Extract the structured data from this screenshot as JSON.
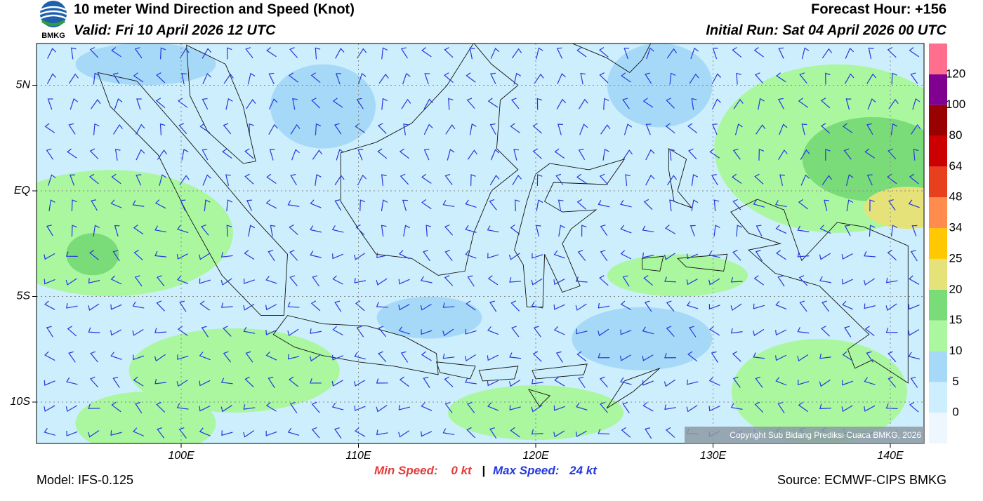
{
  "header": {
    "title": "10 meter Wind Direction and Speed (Knot)",
    "valid": "Valid: Fri 10 April 2026 12 UTC",
    "forecast_hour": "Forecast Hour: +156",
    "initial_run": "Initial Run: Sat 04 April 2026 00 UTC",
    "logo_text": "BMKG"
  },
  "map": {
    "lon_ticks": [
      {
        "value": 100,
        "label": "100E"
      },
      {
        "value": 110,
        "label": "110E"
      },
      {
        "value": 120,
        "label": "120E"
      },
      {
        "value": 130,
        "label": "130E"
      },
      {
        "value": 140,
        "label": "140E"
      }
    ],
    "lat_ticks": [
      {
        "value": 5,
        "label": "5N"
      },
      {
        "value": 0,
        "label": "EQ"
      },
      {
        "value": -5,
        "label": "5S"
      },
      {
        "value": -10,
        "label": "10S"
      }
    ],
    "copyright": "Copyright Sub Bidang Prediksi Cuaca BMKG, 2026"
  },
  "colorbar": {
    "levels": [
      0,
      5,
      10,
      15,
      20,
      25,
      34,
      48,
      64,
      80,
      100,
      120
    ],
    "colors": [
      "#eef7fd",
      "#cdeefc",
      "#a6d9f8",
      "#aaf7a0",
      "#7adc78",
      "#e6e27a",
      "#ffc800",
      "#ff8c4c",
      "#e8401c",
      "#cc0000",
      "#990000",
      "#800090",
      "#ff6e8c"
    ]
  },
  "stats": {
    "min_label": "Min Speed:",
    "min_value": "0 kt",
    "separator": "|",
    "max_label": "Max Speed:",
    "max_value": "24 kt"
  },
  "footer": {
    "model": "Model: IFS-0.125",
    "source": "Source: ECMWF-CIPS BMKG"
  }
}
